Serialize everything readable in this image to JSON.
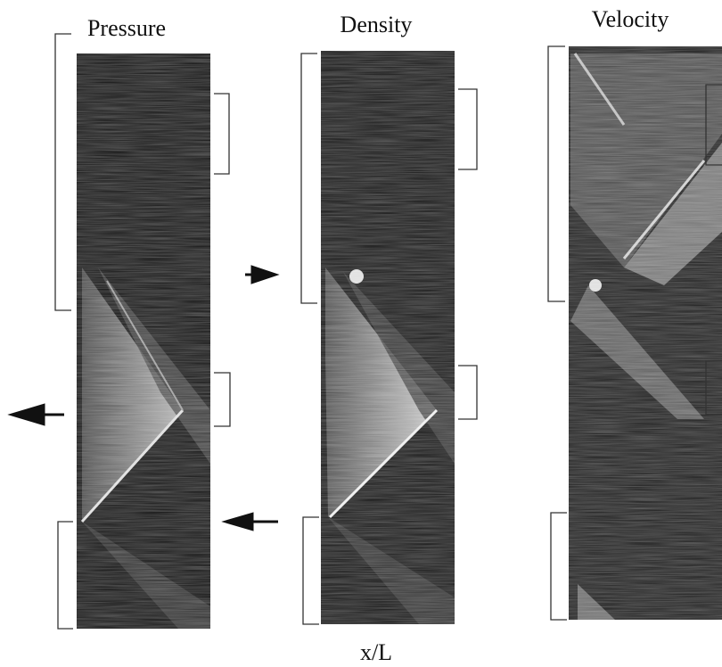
{
  "panels": [
    {
      "title": "Pressure"
    },
    {
      "title": "Density"
    },
    {
      "title": "Velocity"
    }
  ],
  "x_axis_label": "x/L"
}
